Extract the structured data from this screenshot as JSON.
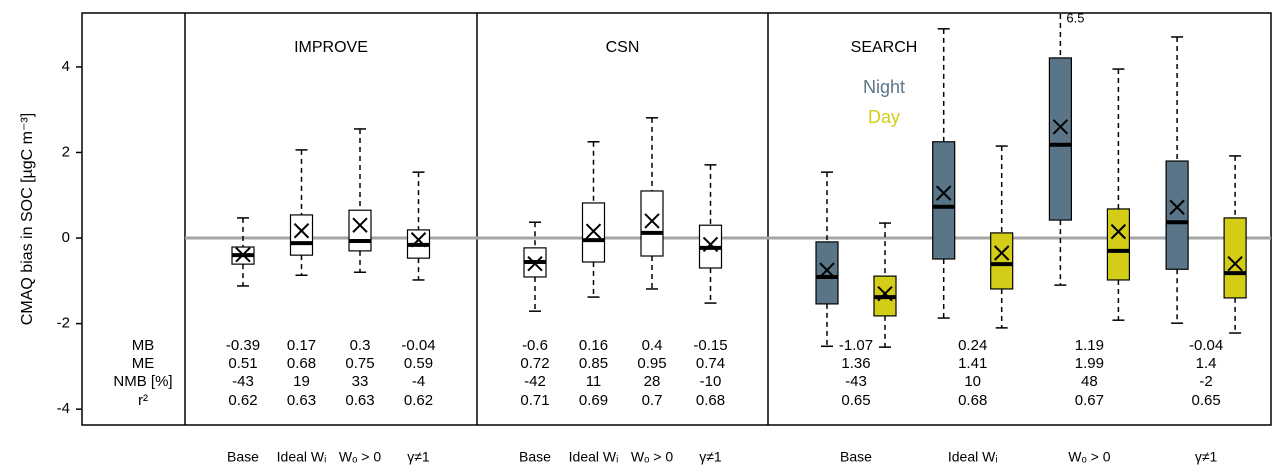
{
  "chart_data": {
    "type": "box",
    "y_label": "CMAQ bias in SOC [µgC m⁻³]",
    "ylim": [
      -4.37,
      5.26
    ],
    "yticks": [
      -4,
      -2,
      0,
      2,
      4
    ],
    "reference_line": 0,
    "stat_names": [
      "MB",
      "ME",
      "NMB [%]",
      "r²"
    ],
    "panels": [
      {
        "name": "IMPROVE",
        "categories": [
          "Base",
          "Ideal Wᵢ",
          "Wₒ > 0",
          "γ≠1"
        ],
        "series": [
          {
            "color": "#ffffff",
            "boxes": [
              {
                "low": -1.12,
                "q1": -0.61,
                "median": -0.4,
                "q3": -0.21,
                "high": 0.47,
                "mean": -0.39
              },
              {
                "low": -0.87,
                "q1": -0.4,
                "median": -0.12,
                "q3": 0.54,
                "high": 2.06,
                "mean": 0.17
              },
              {
                "low": -0.8,
                "q1": -0.3,
                "median": -0.07,
                "q3": 0.65,
                "high": 2.55,
                "mean": 0.3
              },
              {
                "low": -0.98,
                "q1": -0.47,
                "median": -0.16,
                "q3": 0.19,
                "high": 1.54,
                "mean": -0.04
              }
            ]
          }
        ],
        "stats": [
          [
            -0.39,
            0.17,
            0.3,
            -0.04
          ],
          [
            0.51,
            0.68,
            0.75,
            0.59
          ],
          [
            -43,
            19,
            33,
            -4
          ],
          [
            0.62,
            0.63,
            0.63,
            0.62
          ]
        ]
      },
      {
        "name": "CSN",
        "categories": [
          "Base",
          "Ideal Wᵢ",
          "Wₒ > 0",
          "γ≠1"
        ],
        "series": [
          {
            "color": "#ffffff",
            "boxes": [
              {
                "low": -1.71,
                "q1": -0.91,
                "median": -0.56,
                "q3": -0.23,
                "high": 0.37,
                "mean": -0.6
              },
              {
                "low": -1.38,
                "q1": -0.56,
                "median": -0.05,
                "q3": 0.82,
                "high": 2.25,
                "mean": 0.16
              },
              {
                "low": -1.19,
                "q1": -0.42,
                "median": 0.12,
                "q3": 1.1,
                "high": 2.81,
                "mean": 0.4
              },
              {
                "low": -1.52,
                "q1": -0.7,
                "median": -0.23,
                "q3": 0.3,
                "high": 1.71,
                "mean": -0.15
              }
            ]
          }
        ],
        "stats": [
          [
            -0.6,
            0.16,
            0.4,
            -0.15
          ],
          [
            0.72,
            0.85,
            0.95,
            0.74
          ],
          [
            -42,
            11,
            28,
            -10
          ],
          [
            0.71,
            0.69,
            0.7,
            0.68
          ]
        ]
      },
      {
        "name": "SEARCH",
        "categories": [
          "Base",
          "Ideal Wᵢ",
          "Wₒ > 0",
          "γ≠1"
        ],
        "series": [
          {
            "name": "Night",
            "color": "#5b7588",
            "boxes": [
              {
                "low": -2.53,
                "q1": -1.54,
                "median": -0.91,
                "q3": -0.09,
                "high": 1.54,
                "mean": -0.75
              },
              {
                "low": -1.87,
                "q1": -0.49,
                "median": 0.73,
                "q3": 2.25,
                "high": 4.89,
                "mean": 1.05
              },
              {
                "low": -1.1,
                "q1": 0.42,
                "median": 2.18,
                "q3": 4.21,
                "high": 6.5,
                "mean": 2.6
              },
              {
                "low": -1.99,
                "q1": -0.73,
                "median": 0.37,
                "q3": 1.8,
                "high": 4.7,
                "mean": 0.72
              }
            ]
          },
          {
            "name": "Day",
            "color": "#d3cd17",
            "boxes": [
              {
                "low": -2.55,
                "q1": -1.82,
                "median": -1.38,
                "q3": -0.89,
                "high": 0.35,
                "mean": -1.3
              },
              {
                "low": -2.1,
                "q1": -1.19,
                "median": -0.61,
                "q3": 0.12,
                "high": 2.15,
                "mean": -0.35
              },
              {
                "low": -1.92,
                "q1": -0.98,
                "median": -0.3,
                "q3": 0.68,
                "high": 3.95,
                "mean": 0.15
              },
              {
                "low": -2.22,
                "q1": -1.4,
                "median": -0.82,
                "q3": 0.47,
                "high": 1.92,
                "mean": -0.6
              }
            ]
          }
        ],
        "stats": [
          [
            -1.07,
            0.24,
            1.19,
            -0.04
          ],
          [
            1.36,
            1.41,
            1.99,
            1.4
          ],
          [
            -43,
            10,
            48,
            -2
          ],
          [
            0.65,
            0.68,
            0.67,
            0.65
          ]
        ]
      }
    ]
  }
}
